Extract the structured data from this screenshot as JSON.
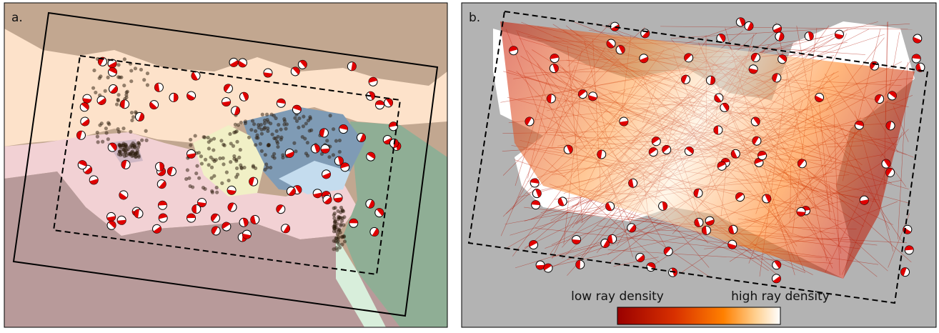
{
  "panels": [
    {
      "label": "a."
    },
    {
      "label": "b."
    }
  ],
  "colorbar": {
    "low_label": "low ray density",
    "high_label": "high ray density"
  }
}
